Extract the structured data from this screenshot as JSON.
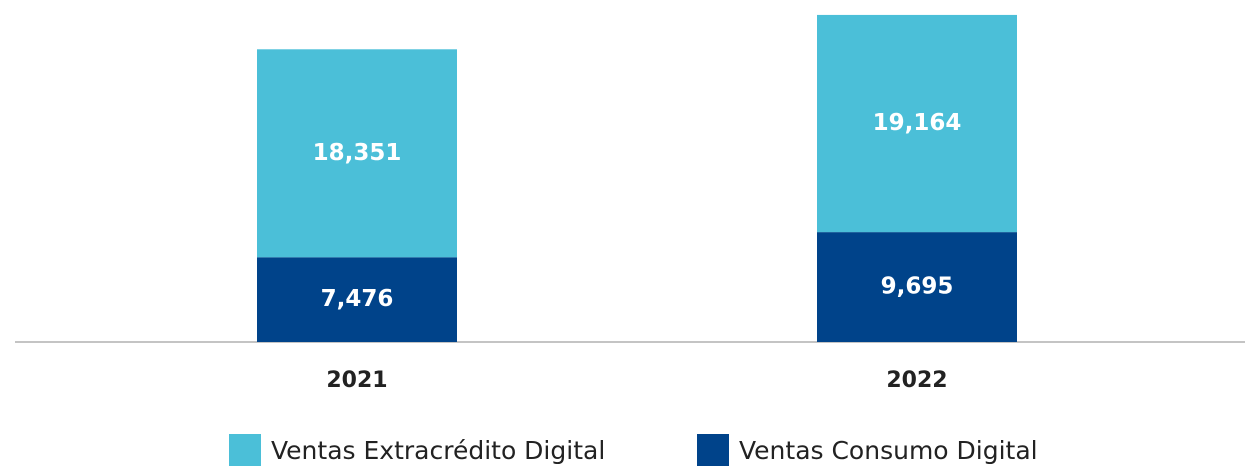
{
  "chart_data": {
    "type": "stacked_bar",
    "categories": [
      "2021",
      "2022"
    ],
    "series": [
      {
        "name": "Ventas Consumo Digital",
        "color": "#00438a",
        "values": [
          7476,
          9695
        ],
        "value_labels": [
          "7,476",
          "9,695"
        ]
      },
      {
        "name": "Ventas Extracrédito Digital",
        "color": "#4bbfd8",
        "values": [
          18351,
          19164
        ],
        "value_labels": [
          "18,351",
          "19,164"
        ]
      }
    ],
    "ylim": [
      0,
      30000
    ],
    "legend": "bottom"
  }
}
